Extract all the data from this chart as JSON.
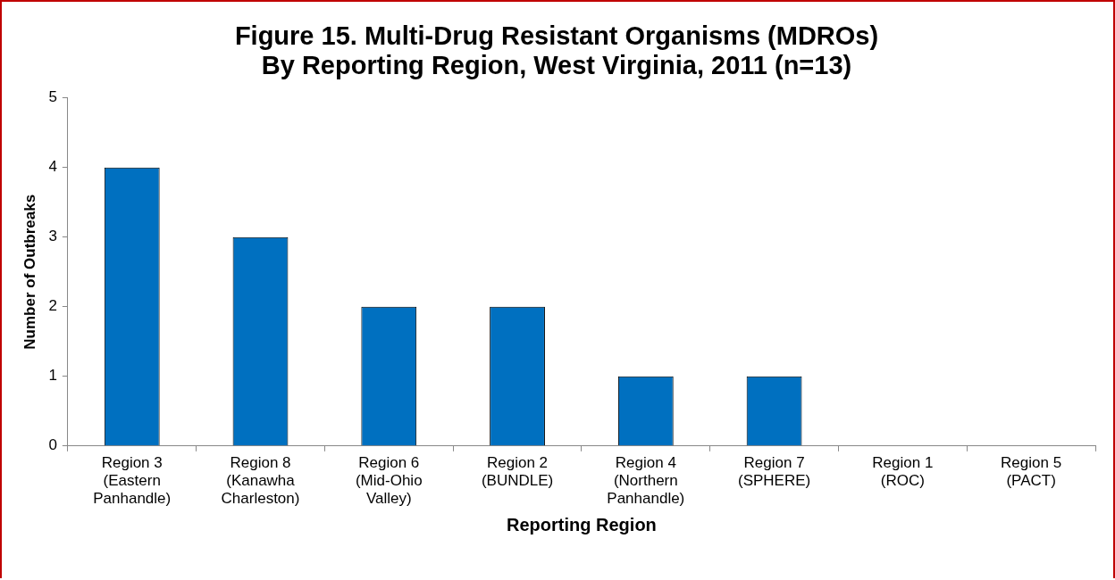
{
  "chart_data": {
    "type": "bar",
    "title": "Figure 15. Multi-Drug Resistant Organisms (MDROs)\nBy Reporting Region, West Virginia, 2011 (n=13)",
    "xlabel": "Reporting Region",
    "ylabel": "Number of Outbreaks",
    "categories": [
      "Region 3\n(Eastern\nPanhandle)",
      "Region 8\n(Kanawha\nCharleston)",
      "Region 6\n(Mid-Ohio\nValley)",
      "Region 2\n(BUNDLE)",
      "Region 4\n(Northern\nPanhandle)",
      "Region 7\n(SPHERE)",
      "Region 1\n(ROC)",
      "Region 5\n(PACT)"
    ],
    "values": [
      4,
      3,
      2,
      2,
      1,
      1,
      0,
      0
    ],
    "color": "#0070c0",
    "ylim": [
      0,
      5
    ],
    "yticks": [
      0,
      1,
      2,
      3,
      4,
      5
    ],
    "grid": false,
    "legend": false
  }
}
